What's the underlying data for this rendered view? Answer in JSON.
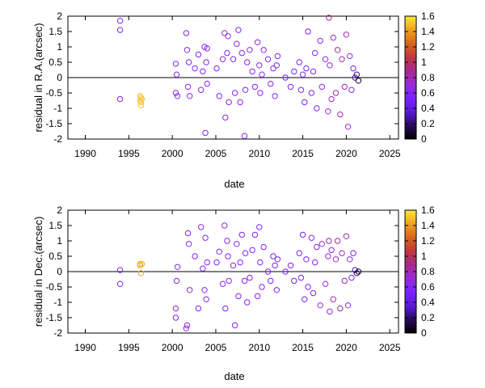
{
  "colorbar": {
    "ticks": [
      "0",
      "0.2",
      "0.4",
      "0.6",
      "0.8",
      "1",
      "1.2",
      "1.4",
      "1.6"
    ],
    "range": [
      0,
      1.6
    ],
    "palette": [
      "#000000",
      "#2a0a5e",
      "#5a1bd8",
      "#7a22ff",
      "#9a2ad8",
      "#a8288e",
      "#c0383e",
      "#d8651a",
      "#f0a020",
      "#ffe838"
    ]
  },
  "chart_data": [
    {
      "type": "scatter",
      "xlabel": "date",
      "ylabel": "residual in R.A.(arcsec)",
      "xlim": [
        1988,
        2026
      ],
      "ylim": [
        -2,
        2
      ],
      "xticks": [
        "1990",
        "1995",
        "2000",
        "2005",
        "2010",
        "2015",
        "2020",
        "2025"
      ],
      "yticks": [
        "-2",
        "-1.5",
        "-1",
        "-0.5",
        "0",
        "0.5",
        "1",
        "1.5",
        "2"
      ],
      "zero_line": true,
      "grid": false,
      "series": [
        {
          "x": [
            1994.0,
            1994.0,
            1994.0,
            1996.3,
            1996.3,
            1996.4,
            1996.4,
            1996.4,
            1996.5,
            2000.4,
            2000.4,
            2000.5,
            2000.6,
            2001.6,
            2001.7,
            2001.8,
            2001.9,
            2002.0,
            2002.6,
            2003.0,
            2003.3,
            2003.5,
            2003.7,
            2003.8,
            2003.9,
            2004.0,
            2004.0,
            2005.1,
            2005.4,
            2005.8,
            2006.0,
            2006.1,
            2006.3,
            2006.4,
            2006.5,
            2007.0,
            2007.2,
            2007.4,
            2007.6,
            2007.8,
            2008.0,
            2008.3,
            2008.4,
            2008.6,
            2008.9,
            2009.2,
            2009.5,
            2009.8,
            2010.0,
            2010.1,
            2010.3,
            2010.5,
            2011.0,
            2011.3,
            2011.6,
            2011.8,
            2012.0,
            2012.1,
            2013.0,
            2013.6,
            2014.0,
            2014.6,
            2014.8,
            2015.0,
            2015.2,
            2015.4,
            2015.6,
            2016.0,
            2016.2,
            2016.4,
            2016.6,
            2017.0,
            2017.2,
            2017.6,
            2017.9,
            2018.0,
            2018.1,
            2018.3,
            2018.5,
            2018.8,
            2019.0,
            2019.3,
            2019.5,
            2019.8,
            2020.0,
            2020.2,
            2020.4,
            2020.6,
            2020.8,
            2021.0,
            2021.2,
            2021.4
          ],
          "y": [
            1.85,
            1.55,
            -0.7,
            -0.6,
            -0.75,
            -0.65,
            -0.8,
            -0.9,
            -0.7,
            0.45,
            -0.5,
            0.1,
            -0.6,
            1.45,
            0.9,
            -0.3,
            0.5,
            -0.6,
            0.3,
            0.75,
            -0.4,
            0.2,
            1.0,
            -1.8,
            0.5,
            -0.2,
            0.95,
            0.3,
            -0.6,
            0.6,
            1.45,
            -1.3,
            0.8,
            1.35,
            -0.8,
            0.6,
            -0.5,
            1.1,
            1.55,
            -0.8,
            0.8,
            -1.9,
            -0.4,
            0.5,
            0.9,
            0.2,
            -0.3,
            1.15,
            0.4,
            -0.5,
            0.1,
            0.9,
            0.6,
            -0.2,
            0.3,
            -0.6,
            0.4,
            0.7,
            0.0,
            -0.3,
            0.2,
            0.5,
            -0.4,
            0.1,
            -0.8,
            0.3,
            1.5,
            -0.5,
            0.2,
            0.8,
            -1.0,
            1.2,
            -0.3,
            0.6,
            -1.1,
            1.95,
            0.4,
            -0.7,
            1.3,
            -0.5,
            0.9,
            -1.2,
            0.6,
            -0.3,
            1.4,
            -1.6,
            0.7,
            -0.4,
            0.3,
            0.0,
            0.1,
            -0.1
          ],
          "c": [
            0.6,
            0.6,
            0.6,
            1.5,
            1.5,
            1.5,
            1.5,
            1.5,
            1.5,
            0.6,
            0.6,
            0.6,
            0.6,
            0.65,
            0.65,
            0.65,
            0.6,
            0.6,
            0.6,
            0.6,
            0.6,
            0.6,
            0.6,
            0.6,
            0.6,
            0.6,
            0.6,
            0.6,
            0.6,
            0.6,
            0.7,
            0.6,
            0.6,
            0.7,
            0.6,
            0.6,
            0.6,
            0.6,
            0.6,
            0.6,
            0.6,
            0.6,
            0.6,
            0.6,
            0.6,
            0.6,
            0.6,
            0.6,
            0.6,
            0.6,
            0.6,
            0.6,
            0.6,
            0.6,
            0.6,
            0.6,
            0.6,
            0.6,
            0.5,
            0.55,
            0.5,
            0.55,
            0.55,
            0.55,
            0.55,
            0.55,
            0.55,
            0.6,
            0.6,
            0.6,
            0.6,
            0.7,
            0.7,
            0.7,
            0.7,
            0.85,
            0.75,
            0.75,
            0.8,
            0.8,
            0.85,
            0.8,
            0.8,
            0.8,
            0.8,
            0.7,
            0.7,
            0.6,
            0.5,
            0.3,
            0.2,
            0.1
          ]
        }
      ]
    },
    {
      "type": "scatter",
      "xlabel": "date",
      "ylabel": "residual in Dec.(arcsec)",
      "xlim": [
        1988,
        2026
      ],
      "ylim": [
        -2,
        2
      ],
      "xticks": [
        "1990",
        "1995",
        "2000",
        "2005",
        "2010",
        "2015",
        "2020",
        "2025"
      ],
      "yticks": [
        "-2",
        "-1.5",
        "-1",
        "-0.5",
        "0",
        "0.5",
        "1",
        "1.5",
        "2"
      ],
      "zero_line": true,
      "grid": false,
      "series": [
        {
          "x": [
            1994.0,
            1994.0,
            1996.3,
            1996.3,
            1996.4,
            1996.5,
            2000.4,
            2000.4,
            2000.5,
            2000.6,
            2001.6,
            2001.7,
            2001.8,
            2001.9,
            2002.0,
            2002.6,
            2003.0,
            2003.3,
            2003.5,
            2003.7,
            2003.8,
            2003.9,
            2004.0,
            2005.1,
            2005.4,
            2005.8,
            2006.0,
            2006.1,
            2006.3,
            2006.4,
            2006.5,
            2007.0,
            2007.2,
            2007.4,
            2007.6,
            2007.8,
            2008.0,
            2008.3,
            2008.4,
            2008.6,
            2008.9,
            2009.2,
            2009.5,
            2009.8,
            2010.0,
            2010.1,
            2010.3,
            2010.5,
            2011.0,
            2011.3,
            2011.6,
            2011.8,
            2012.0,
            2012.1,
            2013.0,
            2013.6,
            2014.0,
            2014.6,
            2014.8,
            2015.0,
            2015.2,
            2015.4,
            2015.6,
            2016.0,
            2016.2,
            2016.4,
            2016.6,
            2017.0,
            2017.2,
            2017.6,
            2017.9,
            2018.0,
            2018.1,
            2018.3,
            2018.5,
            2018.8,
            2019.0,
            2019.3,
            2019.5,
            2019.8,
            2020.0,
            2020.2,
            2020.4,
            2020.6,
            2020.8,
            2021.0,
            2021.2,
            2021.4
          ],
          "y": [
            0.05,
            -0.4,
            0.25,
            0.2,
            -0.05,
            0.25,
            -1.2,
            -1.5,
            -0.3,
            0.15,
            -1.85,
            -1.75,
            1.25,
            0.9,
            -0.6,
            0.5,
            -1.2,
            1.45,
            0.1,
            -0.6,
            1.1,
            -0.9,
            0.3,
            0.3,
            0.65,
            -0.4,
            1.5,
            -1.2,
            1.0,
            0.5,
            -0.3,
            0.2,
            -1.75,
            0.9,
            -0.8,
            0.3,
            1.2,
            -0.3,
            0.6,
            -1.0,
            -0.2,
            0.7,
            1.2,
            -0.8,
            1.45,
            0.3,
            -0.5,
            0.8,
            0.0,
            -0.3,
            0.5,
            0.2,
            -0.6,
            0.4,
            0.0,
            0.2,
            -0.3,
            0.6,
            -0.2,
            1.2,
            -0.9,
            0.4,
            -0.5,
            1.1,
            -0.7,
            0.3,
            0.8,
            -1.1,
            0.9,
            -0.4,
            0.5,
            1.0,
            -1.3,
            0.7,
            -0.9,
            0.4,
            1.0,
            -1.2,
            0.6,
            -0.3,
            1.15,
            -1.1,
            0.4,
            -0.2,
            0.6,
            0.05,
            -0.05,
            0.0
          ],
          "c": [
            0.6,
            0.6,
            1.45,
            1.45,
            1.45,
            1.45,
            0.6,
            0.6,
            0.6,
            0.6,
            0.65,
            0.65,
            0.6,
            0.6,
            0.6,
            0.6,
            0.6,
            0.6,
            0.6,
            0.6,
            0.6,
            0.6,
            0.6,
            0.6,
            0.6,
            0.6,
            0.7,
            0.6,
            0.6,
            0.6,
            0.6,
            0.6,
            0.6,
            0.6,
            0.6,
            0.6,
            0.6,
            0.6,
            0.6,
            0.6,
            0.6,
            0.6,
            0.6,
            0.6,
            0.6,
            0.6,
            0.6,
            0.6,
            0.55,
            0.55,
            0.55,
            0.55,
            0.55,
            0.55,
            0.5,
            0.55,
            0.5,
            0.55,
            0.55,
            0.55,
            0.55,
            0.55,
            0.55,
            0.6,
            0.6,
            0.6,
            0.6,
            0.7,
            0.7,
            0.7,
            0.7,
            0.85,
            0.75,
            0.75,
            0.8,
            0.8,
            0.85,
            0.8,
            0.8,
            0.8,
            0.8,
            0.7,
            0.7,
            0.6,
            0.5,
            0.3,
            0.2,
            0.1
          ]
        }
      ]
    }
  ]
}
